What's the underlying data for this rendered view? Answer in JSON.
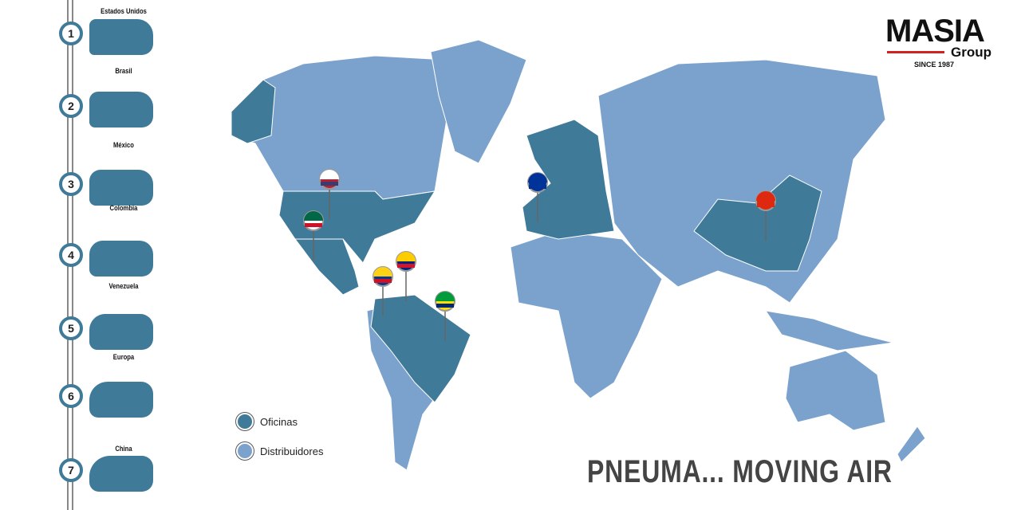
{
  "colors": {
    "offices": "#3f7a99",
    "distributors": "#7ba2cc",
    "accent": "#d32020"
  },
  "sidebar": [
    {
      "n": "1",
      "label": "Estados Unidos"
    },
    {
      "n": "2",
      "label": "Brasil"
    },
    {
      "n": "3",
      "label": "México"
    },
    {
      "n": "4",
      "label": "Colombia"
    },
    {
      "n": "5",
      "label": "Venezuela"
    },
    {
      "n": "6",
      "label": "Europa"
    },
    {
      "n": "7",
      "label": "China"
    }
  ],
  "logo": {
    "name": "MASIA",
    "sub": "Group",
    "since": "SINCE 1987"
  },
  "legend": {
    "offices": "Oficinas",
    "distributors": "Distribuidores"
  },
  "slogan": "PNEUMA... MOVING AIR",
  "pins": [
    "Estados Unidos",
    "México",
    "Colombia",
    "Venezuela",
    "Brasil",
    "Europa",
    "China"
  ]
}
